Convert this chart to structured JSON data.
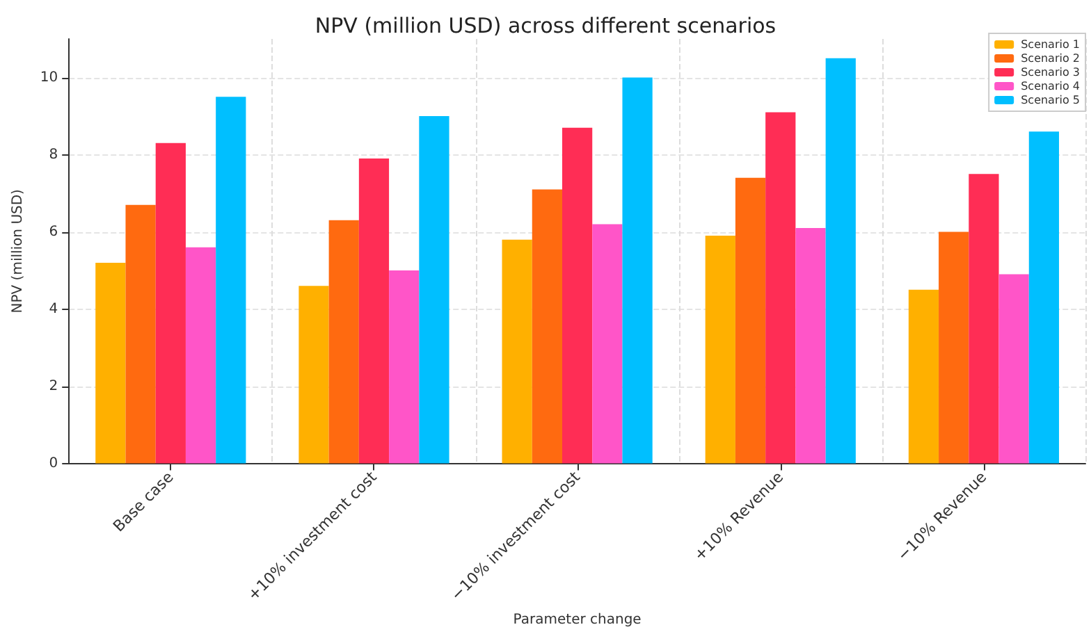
{
  "chart_data": {
    "type": "bar",
    "title": "NPV (million USD) across different scenarios",
    "xlabel": "Parameter change",
    "ylabel": "NPV (million USD)",
    "categories": [
      "Base case",
      "+10% investment cost",
      "−10% investment cost",
      "+10% Revenue",
      "−10% Revenue"
    ],
    "series": [
      {
        "name": "Scenario 1",
        "color": "#ffb000",
        "values": [
          5.2,
          4.6,
          5.8,
          5.9,
          4.5
        ]
      },
      {
        "name": "Scenario 2",
        "color": "#ff6a10",
        "values": [
          6.7,
          6.3,
          7.1,
          7.4,
          6.0
        ]
      },
      {
        "name": "Scenario 3",
        "color": "#ff2d55",
        "values": [
          8.3,
          7.9,
          8.7,
          9.1,
          7.5
        ]
      },
      {
        "name": "Scenario 4",
        "color": "#ff55c8",
        "values": [
          5.6,
          5.0,
          6.2,
          6.1,
          4.9
        ]
      },
      {
        "name": "Scenario 5",
        "color": "#00bfff",
        "values": [
          9.5,
          9.0,
          10.0,
          10.5,
          8.6
        ]
      }
    ],
    "ylim": [
      0,
      11
    ],
    "yticks": [
      0,
      2,
      4,
      6,
      8,
      10
    ],
    "grid": true,
    "legend": "top right"
  }
}
